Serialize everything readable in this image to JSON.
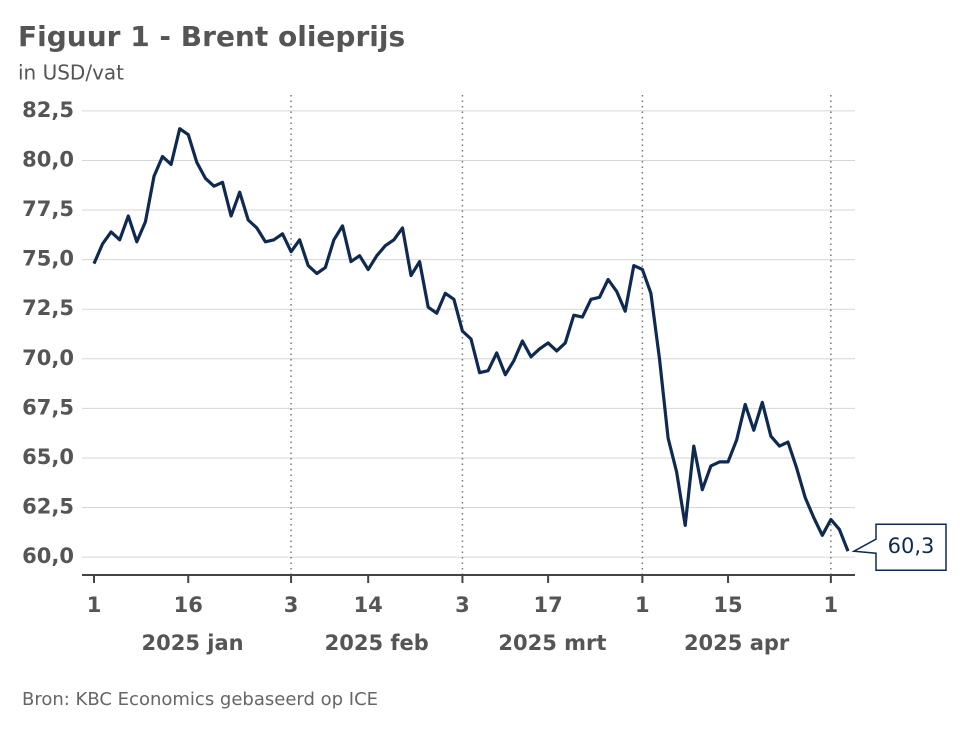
{
  "chart_data": {
    "type": "line",
    "title": "Figuur 1 - Brent olieprijs",
    "subtitle": "in USD/vat",
    "source": "Bron: KBC Economics gebaseerd op ICE",
    "categories": [
      "2025-01-01",
      "2025-01-02",
      "2025-01-03",
      "2025-01-06",
      "2025-01-07",
      "2025-01-08",
      "2025-01-09",
      "2025-01-10",
      "2025-01-13",
      "2025-01-14",
      "2025-01-15",
      "2025-01-16",
      "2025-01-17",
      "2025-01-20",
      "2025-01-21",
      "2025-01-22",
      "2025-01-23",
      "2025-01-24",
      "2025-01-27",
      "2025-01-28",
      "2025-01-29",
      "2025-01-30",
      "2025-01-31",
      "2025-02-03",
      "2025-02-04",
      "2025-02-05",
      "2025-02-06",
      "2025-02-07",
      "2025-02-10",
      "2025-02-11",
      "2025-02-12",
      "2025-02-13",
      "2025-02-14",
      "2025-02-17",
      "2025-02-18",
      "2025-02-19",
      "2025-02-20",
      "2025-02-21",
      "2025-02-24",
      "2025-02-25",
      "2025-02-26",
      "2025-02-27",
      "2025-02-28",
      "2025-03-03",
      "2025-03-04",
      "2025-03-05",
      "2025-03-06",
      "2025-03-07",
      "2025-03-10",
      "2025-03-11",
      "2025-03-12",
      "2025-03-13",
      "2025-03-14",
      "2025-03-17",
      "2025-03-18",
      "2025-03-19",
      "2025-03-20",
      "2025-03-21",
      "2025-03-24",
      "2025-03-25",
      "2025-03-26",
      "2025-03-27",
      "2025-03-28",
      "2025-03-31",
      "2025-04-01",
      "2025-04-02",
      "2025-04-03",
      "2025-04-04",
      "2025-04-07",
      "2025-04-08",
      "2025-04-09",
      "2025-04-10",
      "2025-04-11",
      "2025-04-14",
      "2025-04-15",
      "2025-04-16",
      "2025-04-17",
      "2025-04-18",
      "2025-04-21",
      "2025-04-22",
      "2025-04-23",
      "2025-04-24",
      "2025-04-25",
      "2025-04-28",
      "2025-04-29",
      "2025-04-30",
      "2025-05-01",
      "2025-05-02",
      "2025-05-05"
    ],
    "series": [
      {
        "name": "Brent",
        "color": "#0f2a52",
        "values": [
          74.8,
          75.8,
          76.4,
          76.0,
          77.2,
          75.9,
          76.9,
          79.2,
          80.2,
          79.8,
          81.6,
          81.3,
          79.9,
          79.1,
          78.7,
          78.9,
          77.2,
          78.4,
          77.0,
          76.6,
          75.9,
          76.0,
          76.3,
          75.4,
          76.0,
          74.7,
          74.3,
          74.6,
          76.0,
          76.7,
          74.9,
          75.2,
          74.5,
          75.2,
          75.7,
          76.0,
          76.6,
          74.2,
          74.9,
          72.6,
          72.3,
          73.3,
          73.0,
          71.4,
          71.0,
          69.3,
          69.4,
          70.3,
          69.2,
          69.9,
          70.9,
          70.1,
          70.5,
          70.8,
          70.4,
          70.8,
          72.2,
          72.1,
          73.0,
          73.1,
          74.0,
          73.4,
          72.4,
          74.7,
          74.5,
          73.3,
          70.0,
          66.0,
          64.3,
          61.6,
          65.6,
          63.4,
          64.6,
          64.8,
          64.8,
          65.9,
          67.7,
          66.4,
          67.8,
          66.1,
          65.6,
          65.8,
          64.5,
          63.0,
          62.0,
          61.1,
          61.9,
          61.4,
          60.3
        ],
        "value_labels": [
          null,
          null,
          null,
          null,
          null,
          null,
          null,
          null,
          null,
          null,
          null,
          null,
          null,
          null,
          null,
          null,
          null,
          null,
          null,
          null,
          null,
          null,
          null,
          null,
          null,
          null,
          null,
          null,
          null,
          null,
          null,
          null,
          null,
          null,
          null,
          null,
          null,
          null,
          null,
          null,
          null,
          null,
          null,
          null,
          null,
          null,
          null,
          null,
          null,
          null,
          null,
          null,
          null,
          null,
          null,
          null,
          null,
          null,
          null,
          null,
          null,
          null,
          null,
          null,
          null,
          null,
          null,
          null,
          null,
          null,
          null,
          null,
          null,
          null,
          null,
          null,
          null,
          null,
          null,
          null,
          null,
          null,
          null,
          null,
          null,
          null,
          null,
          null,
          "60,3"
        ]
      }
    ],
    "ylim": [
      59.1,
      83.3
    ],
    "yticks": [
      {
        "value": 60,
        "label": "60,0"
      },
      {
        "value": 62.5,
        "label": "62,5"
      },
      {
        "value": 65,
        "label": "65,0"
      },
      {
        "value": 67.5,
        "label": "67,5"
      },
      {
        "value": 70,
        "label": "70,0"
      },
      {
        "value": 72.5,
        "label": "72,5"
      },
      {
        "value": 75,
        "label": "75,0"
      },
      {
        "value": 77.5,
        "label": "77,5"
      },
      {
        "value": 80,
        "label": "80,0"
      },
      {
        "value": 82.5,
        "label": "82,5"
      }
    ],
    "xticks": [
      {
        "value": "2025-01-01",
        "label": "1"
      },
      {
        "value": "2025-01-16",
        "label": "16"
      },
      {
        "value": "2025-02-03",
        "label": "3"
      },
      {
        "value": "2025-02-14",
        "label": "14"
      },
      {
        "value": "2025-03-03",
        "label": "3"
      },
      {
        "value": "2025-03-17",
        "label": "17"
      },
      {
        "value": "2025-04-01",
        "label": "1"
      },
      {
        "value": "2025-04-15",
        "label": "15"
      },
      {
        "value": "2025-05-01",
        "label": "1"
      }
    ],
    "xgroups": [
      {
        "label": "2025 jan",
        "start": "2025-01-01",
        "end": "2025-02-03"
      },
      {
        "label": "2025 feb",
        "start": "2025-02-03",
        "end": "2025-03-03"
      },
      {
        "label": "2025 mrt",
        "start": "2025-03-03",
        "end": "2025-04-01"
      },
      {
        "label": "2025 apr",
        "start": "2025-04-01",
        "end": "2025-05-01"
      }
    ],
    "grid": true
  }
}
